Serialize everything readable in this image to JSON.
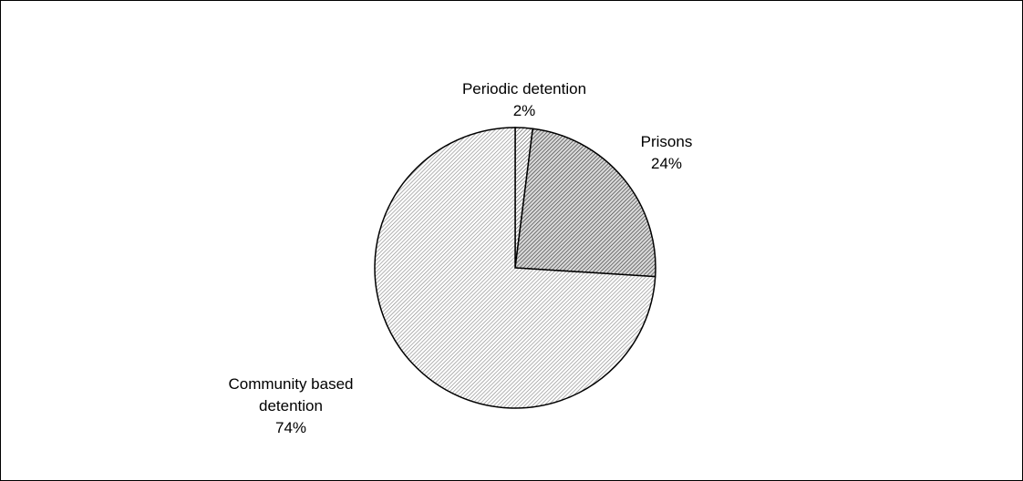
{
  "chart_data": {
    "type": "pie",
    "title": "",
    "start_angle_deg": 0,
    "direction": "clockwise",
    "slices": [
      {
        "name": "Periodic detention",
        "value": 2,
        "label_lines": [
          "Periodic detention",
          "2%"
        ],
        "fill_base": "#ffffff",
        "hatch_color": "#5a5a5a"
      },
      {
        "name": "Prisons",
        "value": 24,
        "label_lines": [
          "Prisons",
          "24%"
        ],
        "fill_base": "#d9d9d9",
        "hatch_color": "#3a3a3a"
      },
      {
        "name": "Community based detention",
        "value": 74,
        "label_lines": [
          "Community based",
          "detention",
          "74%"
        ],
        "fill_base": "#ffffff",
        "hatch_color": "#8a8a8a"
      }
    ],
    "legend": "none",
    "outline_color": "#000000"
  }
}
